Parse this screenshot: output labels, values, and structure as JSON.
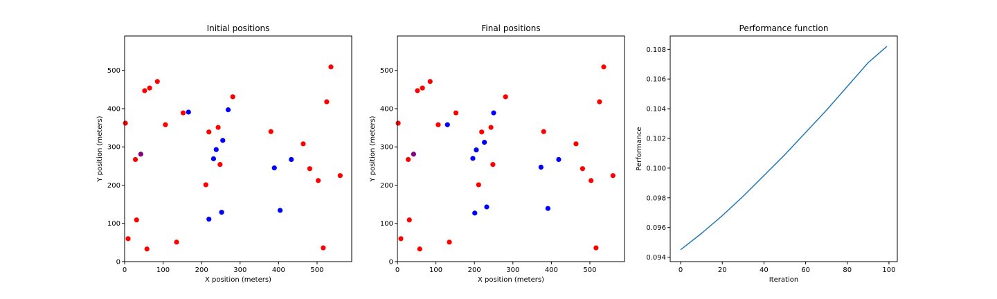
{
  "chart_data": [
    {
      "type": "scatter",
      "title": "Initial positions",
      "xlabel": "X position (meters)",
      "ylabel": "Y position (meters)",
      "xlim": [
        0,
        590
      ],
      "ylim": [
        0,
        590
      ],
      "xticks": [
        0,
        100,
        200,
        300,
        400,
        500
      ],
      "yticks": [
        0,
        100,
        200,
        300,
        400,
        500
      ],
      "colors": {
        "red": "#ff0000",
        "blue": "#0000ff",
        "purple": "#800080"
      },
      "points": [
        {
          "x": 2,
          "y": 362,
          "c": "red"
        },
        {
          "x": 28,
          "y": 267,
          "c": "red"
        },
        {
          "x": 9,
          "y": 60,
          "c": "red"
        },
        {
          "x": 31,
          "y": 109,
          "c": "red"
        },
        {
          "x": 58,
          "y": 33,
          "c": "red"
        },
        {
          "x": 42,
          "y": 281,
          "c": "purple"
        },
        {
          "x": 52,
          "y": 447,
          "c": "red"
        },
        {
          "x": 65,
          "y": 454,
          "c": "red"
        },
        {
          "x": 85,
          "y": 471,
          "c": "red"
        },
        {
          "x": 106,
          "y": 358,
          "c": "red"
        },
        {
          "x": 135,
          "y": 51,
          "c": "red"
        },
        {
          "x": 152,
          "y": 389,
          "c": "red"
        },
        {
          "x": 166,
          "y": 391,
          "c": "blue"
        },
        {
          "x": 211,
          "y": 201,
          "c": "red"
        },
        {
          "x": 219,
          "y": 339,
          "c": "red"
        },
        {
          "x": 219,
          "y": 111,
          "c": "blue"
        },
        {
          "x": 231,
          "y": 269,
          "c": "blue"
        },
        {
          "x": 238,
          "y": 293,
          "c": "blue"
        },
        {
          "x": 243,
          "y": 351,
          "c": "red"
        },
        {
          "x": 248,
          "y": 254,
          "c": "red"
        },
        {
          "x": 252,
          "y": 129,
          "c": "blue"
        },
        {
          "x": 255,
          "y": 317,
          "c": "blue"
        },
        {
          "x": 269,
          "y": 397,
          "c": "blue"
        },
        {
          "x": 281,
          "y": 431,
          "c": "red"
        },
        {
          "x": 380,
          "y": 340,
          "c": "red"
        },
        {
          "x": 389,
          "y": 245,
          "c": "blue"
        },
        {
          "x": 404,
          "y": 134,
          "c": "blue"
        },
        {
          "x": 433,
          "y": 267,
          "c": "blue"
        },
        {
          "x": 464,
          "y": 308,
          "c": "red"
        },
        {
          "x": 481,
          "y": 243,
          "c": "red"
        },
        {
          "x": 503,
          "y": 212,
          "c": "red"
        },
        {
          "x": 516,
          "y": 36,
          "c": "red"
        },
        {
          "x": 525,
          "y": 418,
          "c": "red"
        },
        {
          "x": 536,
          "y": 509,
          "c": "red"
        },
        {
          "x": 560,
          "y": 225,
          "c": "red"
        }
      ]
    },
    {
      "type": "scatter",
      "title": "Final positions",
      "xlabel": "X position (meters)",
      "ylabel": "Y position (meters)",
      "xlim": [
        0,
        590
      ],
      "ylim": [
        0,
        590
      ],
      "xticks": [
        0,
        100,
        200,
        300,
        400,
        500
      ],
      "yticks": [
        0,
        100,
        200,
        300,
        400,
        500
      ],
      "colors": {
        "red": "#ff0000",
        "blue": "#0000ff",
        "purple": "#800080"
      },
      "points": [
        {
          "x": 2,
          "y": 362,
          "c": "red"
        },
        {
          "x": 28,
          "y": 267,
          "c": "red"
        },
        {
          "x": 9,
          "y": 60,
          "c": "red"
        },
        {
          "x": 31,
          "y": 109,
          "c": "red"
        },
        {
          "x": 58,
          "y": 33,
          "c": "red"
        },
        {
          "x": 42,
          "y": 281,
          "c": "purple"
        },
        {
          "x": 52,
          "y": 447,
          "c": "red"
        },
        {
          "x": 65,
          "y": 454,
          "c": "red"
        },
        {
          "x": 85,
          "y": 471,
          "c": "red"
        },
        {
          "x": 106,
          "y": 358,
          "c": "red"
        },
        {
          "x": 135,
          "y": 51,
          "c": "red"
        },
        {
          "x": 152,
          "y": 389,
          "c": "red"
        },
        {
          "x": 130,
          "y": 358,
          "c": "blue"
        },
        {
          "x": 211,
          "y": 201,
          "c": "red"
        },
        {
          "x": 219,
          "y": 339,
          "c": "red"
        },
        {
          "x": 201,
          "y": 127,
          "c": "blue"
        },
        {
          "x": 196,
          "y": 270,
          "c": "blue"
        },
        {
          "x": 205,
          "y": 292,
          "c": "blue"
        },
        {
          "x": 243,
          "y": 351,
          "c": "red"
        },
        {
          "x": 248,
          "y": 254,
          "c": "red"
        },
        {
          "x": 232,
          "y": 143,
          "c": "blue"
        },
        {
          "x": 226,
          "y": 312,
          "c": "blue"
        },
        {
          "x": 250,
          "y": 389,
          "c": "blue"
        },
        {
          "x": 281,
          "y": 431,
          "c": "red"
        },
        {
          "x": 380,
          "y": 340,
          "c": "red"
        },
        {
          "x": 373,
          "y": 247,
          "c": "blue"
        },
        {
          "x": 391,
          "y": 139,
          "c": "blue"
        },
        {
          "x": 419,
          "y": 267,
          "c": "blue"
        },
        {
          "x": 464,
          "y": 308,
          "c": "red"
        },
        {
          "x": 481,
          "y": 243,
          "c": "red"
        },
        {
          "x": 503,
          "y": 212,
          "c": "red"
        },
        {
          "x": 516,
          "y": 36,
          "c": "red"
        },
        {
          "x": 525,
          "y": 418,
          "c": "red"
        },
        {
          "x": 536,
          "y": 509,
          "c": "red"
        },
        {
          "x": 560,
          "y": 225,
          "c": "red"
        }
      ]
    },
    {
      "type": "line",
      "title": "Performance function",
      "xlabel": "Iteration",
      "ylabel": "Performance",
      "xlim": [
        -5,
        104
      ],
      "ylim": [
        0.0937,
        0.1089
      ],
      "xticks": [
        0,
        20,
        40,
        60,
        80,
        100
      ],
      "yticks": [
        "0.094",
        "0.096",
        "0.098",
        "0.100",
        "0.102",
        "0.104",
        "0.106",
        "0.108"
      ],
      "color": "#1f77b4",
      "series": [
        {
          "x": [
            0,
            10,
            20,
            30,
            40,
            50,
            60,
            70,
            80,
            90,
            99
          ],
          "values": [
            0.0945,
            0.0956,
            0.0968,
            0.0981,
            0.0995,
            0.1009,
            0.1024,
            0.1039,
            0.1055,
            0.1071,
            0.1082
          ]
        }
      ]
    }
  ]
}
